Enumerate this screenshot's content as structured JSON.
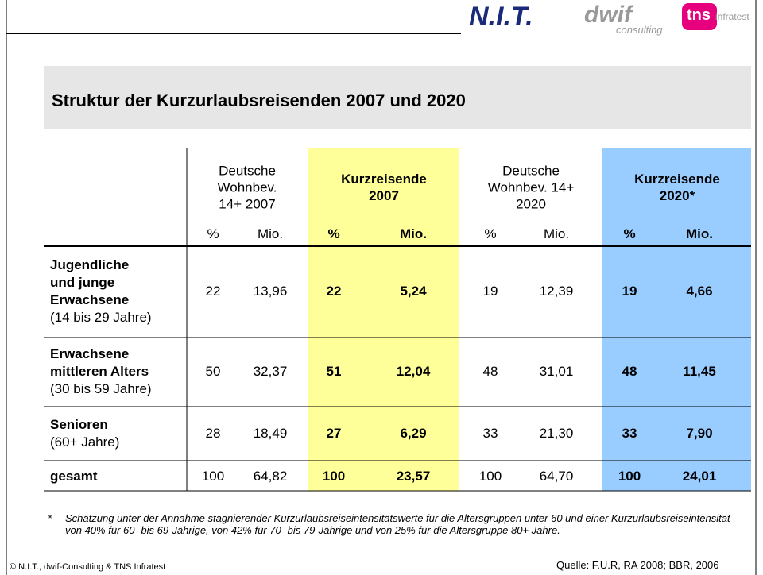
{
  "header": {
    "logos": [
      "N.I.T.",
      "dwif",
      "consulting",
      "tns",
      "infratest"
    ]
  },
  "title": "Struktur der Kurzurlaubsreisenden 2007 und 2020",
  "table": {
    "groups": [
      "Deutsche\nWohnbev.\n14+ 2007",
      "Kurzreisende\n2007",
      "Deutsche\nWohnbev. 14+\n2020",
      "Kurzreisende\n2020*"
    ],
    "subheaders": [
      "%",
      "Mio.",
      "%",
      "Mio.",
      "%",
      "Mio.",
      "%",
      "Mio."
    ],
    "rows": [
      {
        "label": "Jugendliche\nund junge\nErwachsene",
        "sublabel": "(14 bis 29 Jahre)",
        "values": [
          "22",
          "13,96",
          "22",
          "5,24",
          "19",
          "12,39",
          "19",
          "4,66"
        ]
      },
      {
        "label": "Erwachsene\nmittleren Alters",
        "sublabel": "(30 bis 59 Jahre)",
        "values": [
          "50",
          "32,37",
          "51",
          "12,04",
          "48",
          "31,01",
          "48",
          "11,45"
        ]
      },
      {
        "label": "Senioren",
        "sublabel": "(60+ Jahre)",
        "values": [
          "28",
          "18,49",
          "27",
          "6,29",
          "33",
          "21,30",
          "33",
          "7,90"
        ]
      },
      {
        "label": "gesamt",
        "values": [
          "100",
          "64,82",
          "100",
          "23,57",
          "100",
          "64,70",
          "100",
          "24,01"
        ]
      }
    ]
  },
  "footnote": {
    "mark": "*",
    "text": "Schätzung unter der Annahme stagnierender Kurzurlaubsreiseintensitätswerte für die Altersgruppen unter 60 und einer Kurzurlaubsreiseintensität von 40% für 60- bis 69-Jährige, von 42% für 70- bis 79-Jährige und von 25% für die Altersgruppe 80+ Jahre."
  },
  "copyright": "© N.I.T., dwif-Consulting & TNS Infratest",
  "source": "Quelle: F.U.R, RA 2008; BBR, 2006"
}
